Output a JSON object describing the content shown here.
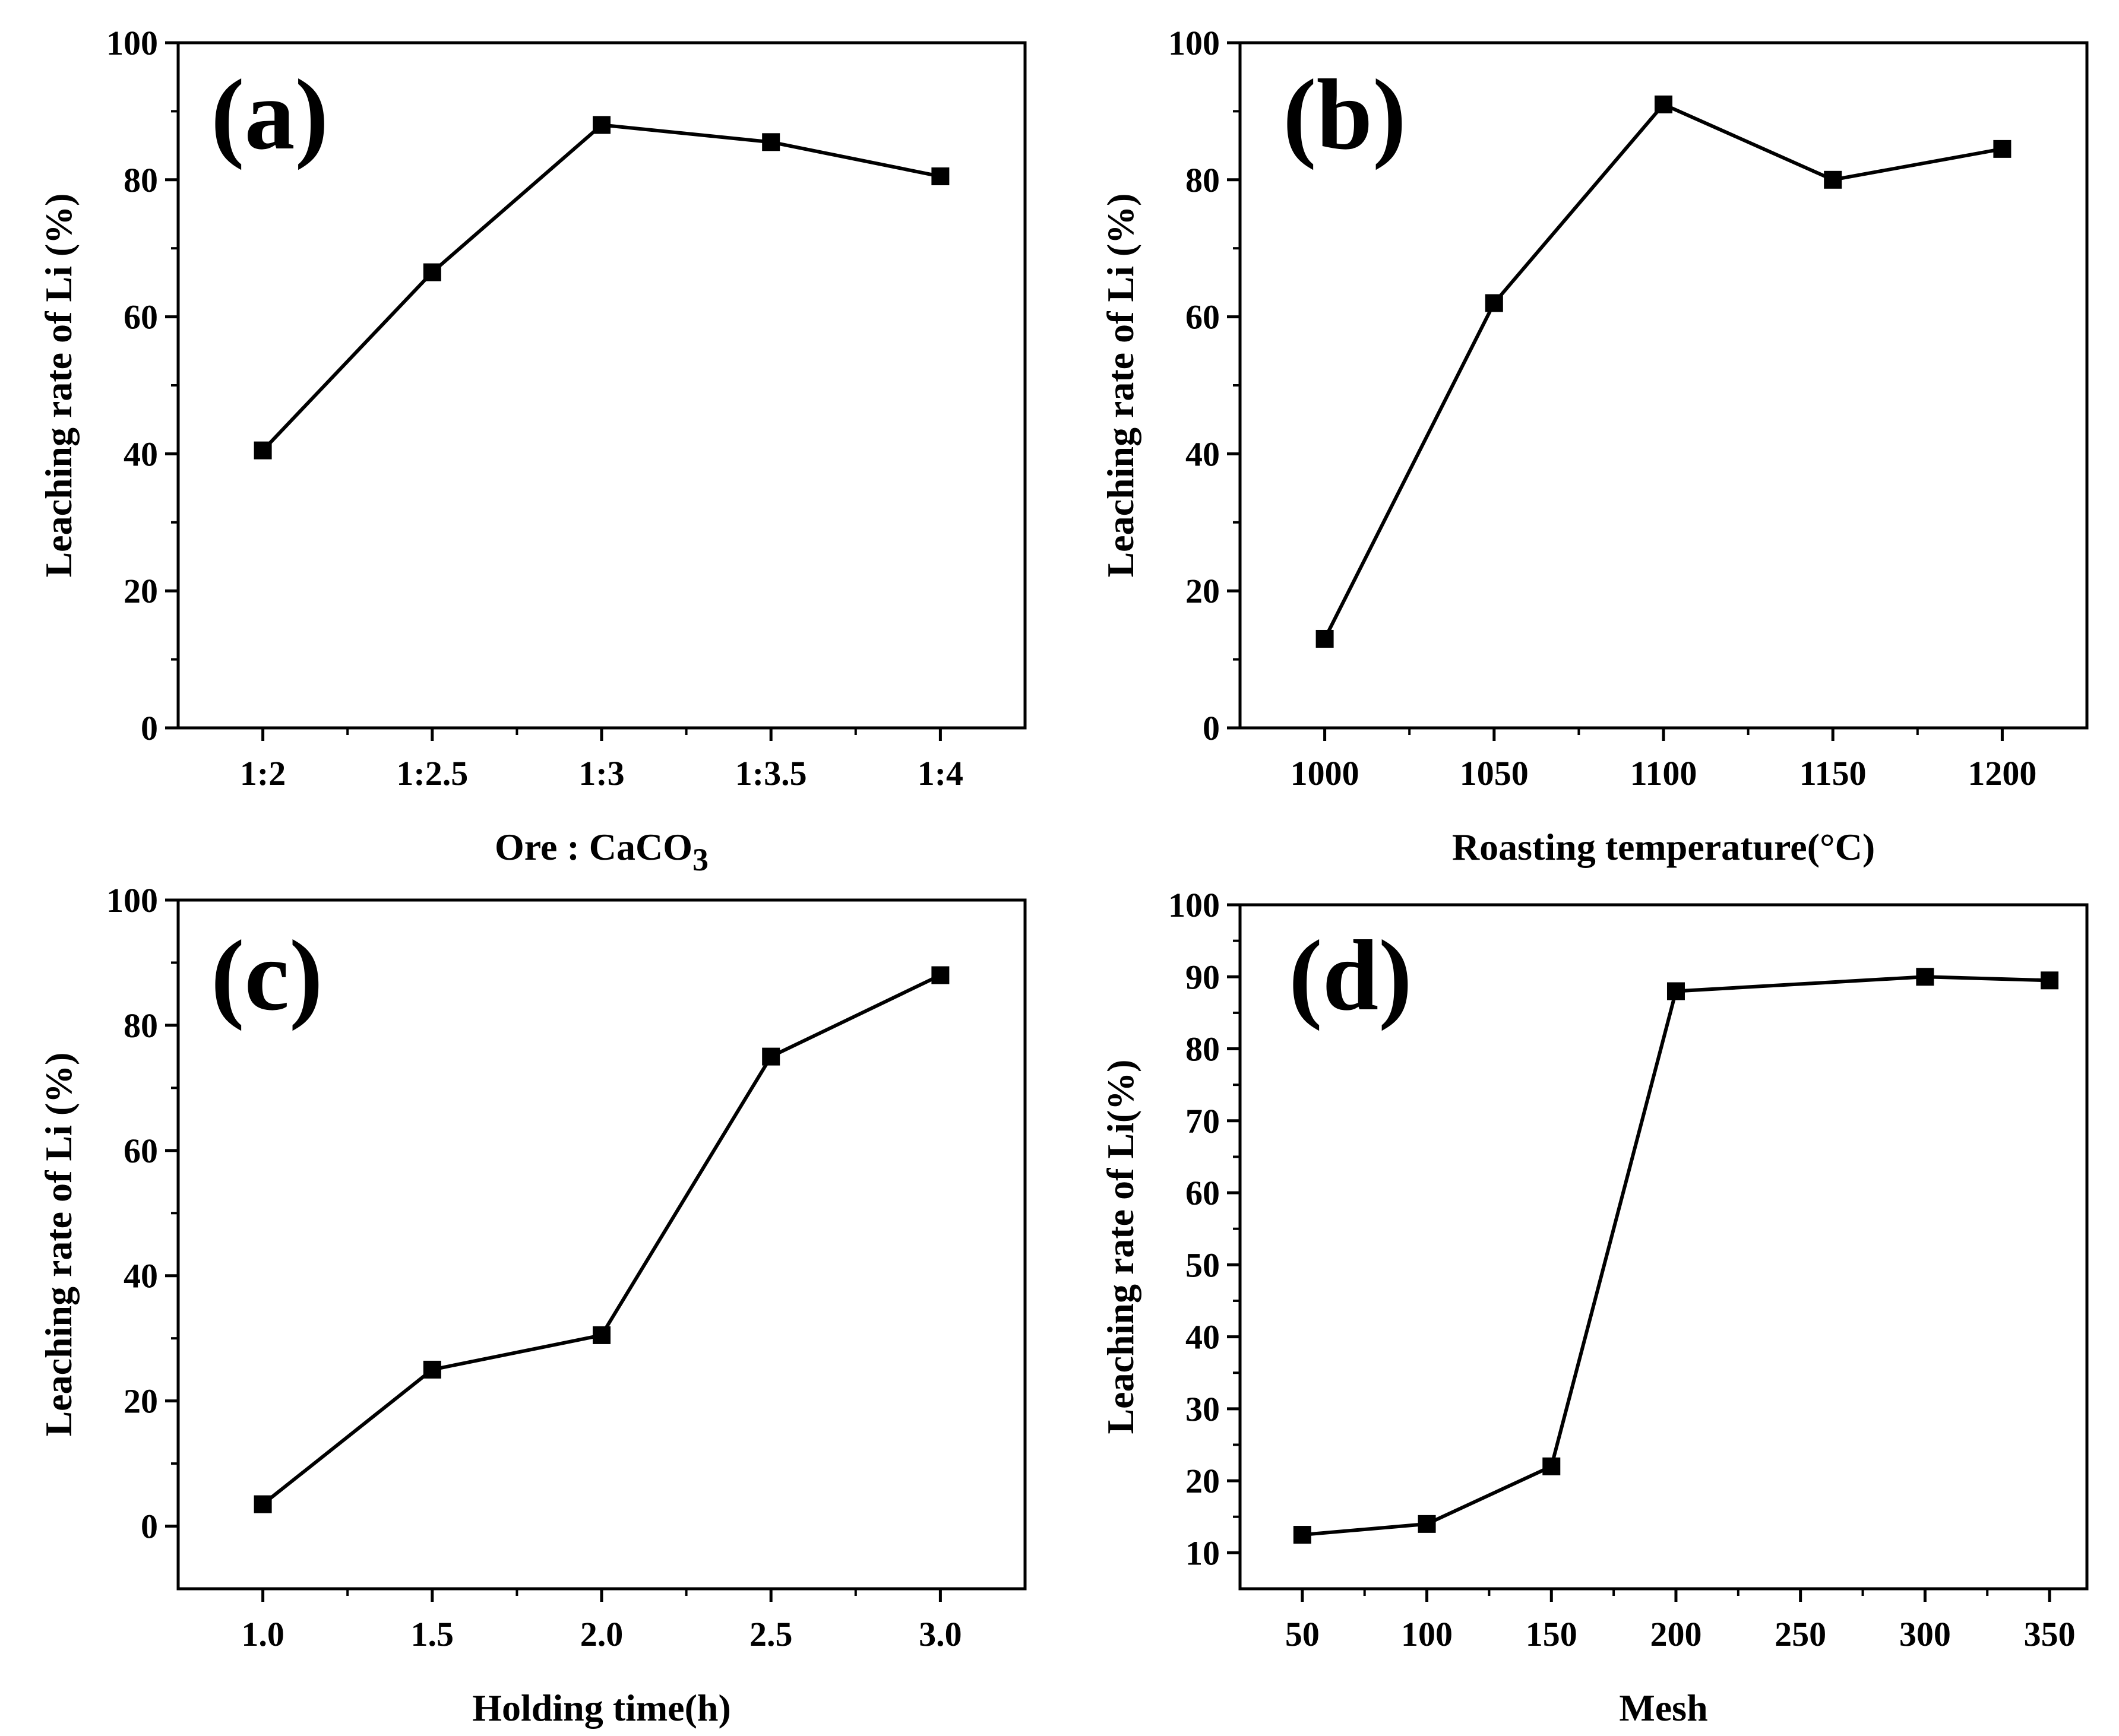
{
  "colors": {
    "line": "#000000",
    "marker": "#000000",
    "background": "#ffffff"
  },
  "chart_data": [
    {
      "id": "a",
      "type": "line",
      "panel_label": "(a)",
      "xlabel": "Ore : CaCO",
      "xlabel_sub": "3",
      "ylabel": "Leaching rate of Li (%)",
      "categories": [
        "1:2",
        "1:2.5",
        "1:3",
        "1:3.5",
        "1:4"
      ],
      "x": [
        0,
        1,
        2,
        3,
        4
      ],
      "xlim": [
        -0.5,
        4.5
      ],
      "xticks": [
        0,
        1,
        2,
        3,
        4
      ],
      "xtick_labels": [
        "1:2",
        "1:2.5",
        "1:3",
        "1:3.5",
        "1:4"
      ],
      "y": [
        40.5,
        66.5,
        88,
        85.5,
        80.5
      ],
      "ylim": [
        0,
        100
      ],
      "yticks": [
        0,
        20,
        40,
        60,
        80,
        100
      ],
      "ytick_labels": [
        "0",
        "20",
        "40",
        "60",
        "80",
        "100"
      ]
    },
    {
      "id": "b",
      "type": "line",
      "panel_label": "(b)",
      "xlabel": "Roasting temperature(°C)",
      "xlabel_sub": "",
      "ylabel": "Leaching rate of Li (%)",
      "x": [
        1000,
        1050,
        1100,
        1150,
        1200
      ],
      "xlim": [
        975,
        1225
      ],
      "xticks": [
        1000,
        1050,
        1100,
        1150,
        1200
      ],
      "xtick_labels": [
        "1000",
        "1050",
        "1100",
        "1150",
        "1200"
      ],
      "y": [
        13,
        62,
        91,
        80,
        84.5
      ],
      "ylim": [
        0,
        100
      ],
      "yticks": [
        0,
        20,
        40,
        60,
        80,
        100
      ],
      "ytick_labels": [
        "0",
        "20",
        "40",
        "60",
        "80",
        "100"
      ]
    },
    {
      "id": "c",
      "type": "line",
      "panel_label": "(c)",
      "xlabel": "Holding time(h)",
      "xlabel_sub": "",
      "ylabel": "Leaching rate of Li (%)",
      "x": [
        1.0,
        1.5,
        2.0,
        2.5,
        3.0
      ],
      "xlim": [
        0.75,
        3.25
      ],
      "xticks": [
        1.0,
        1.5,
        2.0,
        2.5,
        3.0
      ],
      "xtick_labels": [
        "1.0",
        "1.5",
        "2.0",
        "2.5",
        "3.0"
      ],
      "y": [
        3.5,
        25,
        30.5,
        75,
        88
      ],
      "ylim": [
        -10,
        100
      ],
      "yticks": [
        0,
        20,
        40,
        60,
        80,
        100
      ],
      "ytick_labels": [
        "0",
        "20",
        "40",
        "60",
        "80",
        "100"
      ]
    },
    {
      "id": "d",
      "type": "line",
      "panel_label": "(d)",
      "xlabel": "Mesh",
      "xlabel_sub": "",
      "ylabel": "Leaching rate of Li(%)",
      "x": [
        50,
        100,
        150,
        200,
        300,
        350
      ],
      "xlim": [
        25,
        365
      ],
      "xticks": [
        50,
        100,
        150,
        200,
        250,
        300,
        350
      ],
      "xtick_labels": [
        "50",
        "100",
        "150",
        "200",
        "250",
        "300",
        "350"
      ],
      "y": [
        12.5,
        14,
        22,
        88,
        90,
        89.5
      ],
      "ylim": [
        5,
        100
      ],
      "yticks": [
        10,
        20,
        30,
        40,
        50,
        60,
        70,
        80,
        90,
        100
      ],
      "ytick_labels": [
        "10",
        "20",
        "30",
        "40",
        "50",
        "60",
        "70",
        "80",
        "90",
        "100"
      ]
    }
  ]
}
